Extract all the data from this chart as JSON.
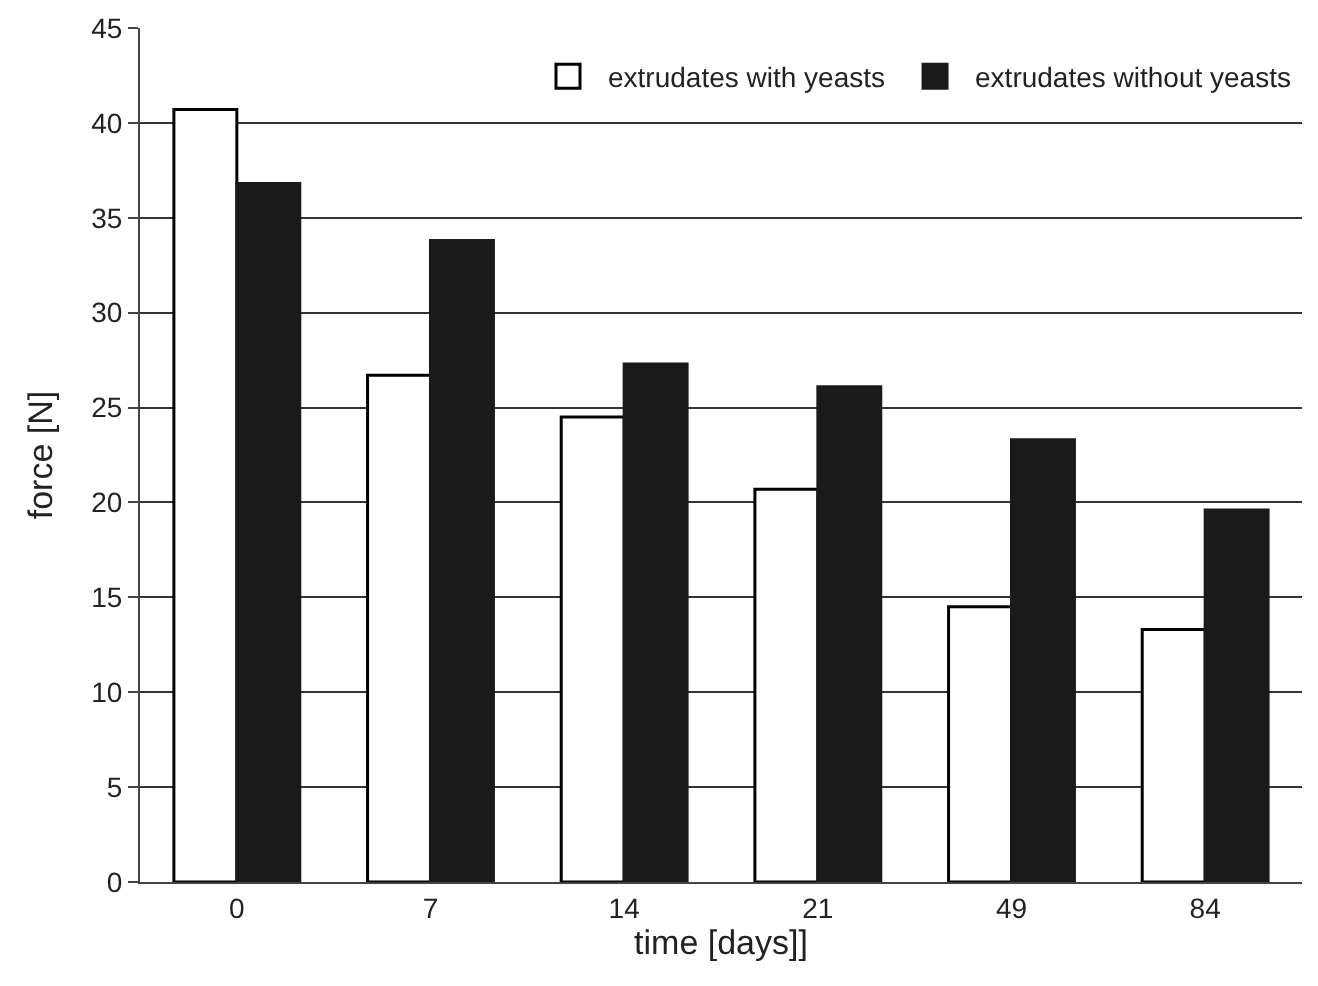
{
  "chart_data": {
    "type": "bar",
    "xlabel": "time [days]]",
    "ylabel": "force [N]",
    "categories": [
      "0",
      "7",
      "14",
      "21",
      "49",
      "84"
    ],
    "series": [
      {
        "name": "extrudates with yeasts",
        "color": "#ffffff",
        "values": [
          40.7,
          26.7,
          24.5,
          20.7,
          14.5,
          13.3
        ]
      },
      {
        "name": "extrudates without yeasts",
        "color": "#1a1a1a",
        "values": [
          36.8,
          33.8,
          27.3,
          26.1,
          23.3,
          19.6
        ]
      }
    ],
    "ylim": [
      0,
      45
    ],
    "yticks": [
      0,
      5,
      10,
      15,
      20,
      25,
      30,
      35,
      40,
      45
    ],
    "grid": "y",
    "legend": "top right"
  }
}
